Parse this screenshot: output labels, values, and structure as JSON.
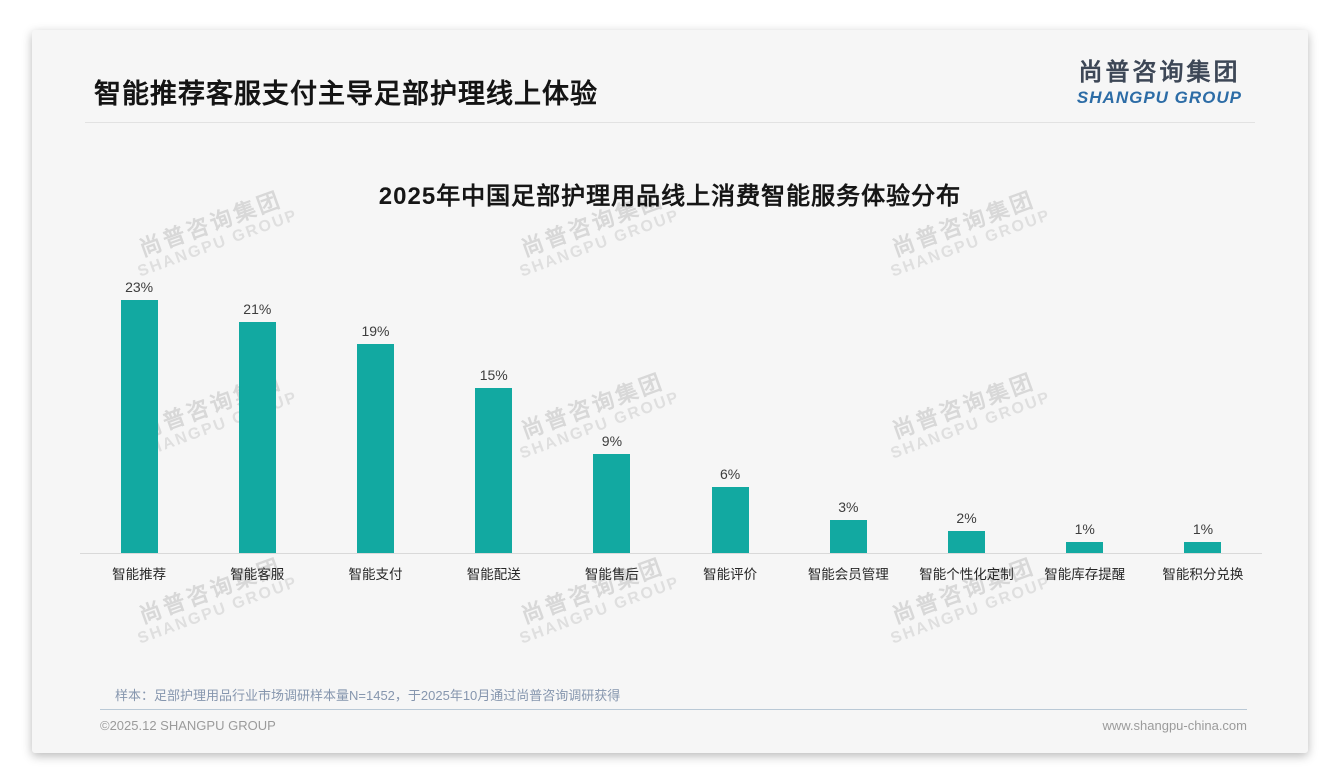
{
  "page": {
    "header_title": "智能推荐客服支付主导足部护理线上体验",
    "logo": {
      "cn": "尚普咨询集团",
      "en": "SHANGPU GROUP"
    },
    "watermark": {
      "line1": "尚普咨询集团",
      "line2": "SHANGPU GROUP"
    },
    "footnote": "样本：足部护理用品行业市场调研样本量N=1452，于2025年10月通过尚普咨询调研获得",
    "footer_left": "©2025.12 SHANGPU GROUP",
    "footer_right": "www.shangpu-china.com"
  },
  "chart_data": {
    "type": "bar",
    "title": "2025年中国足部护理用品线上消费智能服务体验分布",
    "categories": [
      "智能推荐",
      "智能客服",
      "智能支付",
      "智能配送",
      "智能售后",
      "智能评价",
      "智能会员管理",
      "智能个性化定制",
      "智能库存提醒",
      "智能积分兑换"
    ],
    "values": [
      23,
      21,
      19,
      15,
      9,
      6,
      3,
      2,
      1,
      1
    ],
    "value_labels": [
      "23%",
      "21%",
      "19%",
      "15%",
      "9%",
      "6%",
      "3%",
      "2%",
      "1%",
      "1%"
    ],
    "unit": "%",
    "xlabel": "",
    "ylabel": "",
    "ylim": [
      0,
      25
    ],
    "grid": false,
    "legend": null,
    "bar_color": "#12A9A1"
  }
}
